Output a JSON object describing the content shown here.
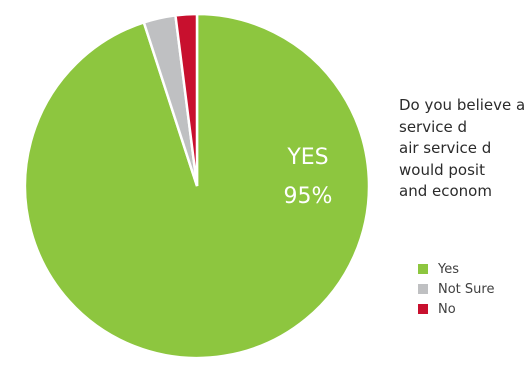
{
  "question": "Do you believe air service d\nair service d\nwould posit\nand econom",
  "colors": {
    "yes": "#8dc63f",
    "not_sure": "#bfc0c2",
    "no": "#c8102e"
  },
  "chart_data": {
    "type": "pie",
    "title": "",
    "slices": [
      {
        "name": "Yes",
        "value": 95,
        "color": "#8dc63f"
      },
      {
        "name": "Not Sure",
        "value": 3,
        "color": "#bfc0c2"
      },
      {
        "name": "No",
        "value": 2,
        "color": "#c8102e"
      }
    ],
    "data_label": {
      "line1": "YES",
      "line2": "95%"
    },
    "legend": {
      "placement": "right",
      "entries": [
        "Yes",
        "Not Sure",
        "No"
      ]
    }
  }
}
